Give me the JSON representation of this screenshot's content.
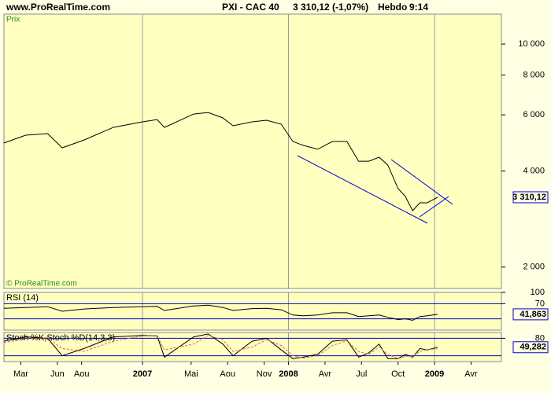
{
  "header": {
    "site": "www.ProRealTime.com",
    "instrument": "PXI - CAC 40",
    "quote": "3 310,12 (-1,07%)",
    "period": "Hebdo",
    "time": "9:14"
  },
  "chart_data": [
    {
      "type": "line",
      "title": "Prix",
      "source": "© ProRealTime.com",
      "log": true,
      "x": [
        2006.05,
        2006.2,
        2006.35,
        2006.45,
        2006.6,
        2006.8,
        2007.0,
        2007.1,
        2007.15,
        2007.35,
        2007.45,
        2007.55,
        2007.62,
        2007.75,
        2007.85,
        2007.95,
        2008.03,
        2008.1,
        2008.2,
        2008.3,
        2008.4,
        2008.48,
        2008.55,
        2008.62,
        2008.68,
        2008.75,
        2008.8,
        2008.85,
        2008.9,
        2008.95,
        2009.02
      ],
      "series": [
        {
          "color": "#000000",
          "values": [
            4895,
            5180,
            5240,
            4730,
            5005,
            5480,
            5705,
            5800,
            5480,
            6035,
            6105,
            5870,
            5545,
            5705,
            5770,
            5610,
            4950,
            4815,
            4680,
            4950,
            4950,
            4295,
            4295,
            4420,
            4175,
            3525,
            3330,
            3005,
            3180,
            3180,
            3310.12
          ]
        }
      ],
      "last_label": "3 310,12",
      "xlim": [
        2006.051,
        2009.458
      ],
      "xticks": [
        {
          "value": 2006.167,
          "label": "Mar"
        },
        {
          "value": 2006.417,
          "label": "Jun"
        },
        {
          "value": 2006.583,
          "label": "Aou"
        },
        2007,
        {
          "value": 2007.333,
          "label": "Mai"
        },
        {
          "value": 2007.583,
          "label": "Aou"
        },
        {
          "value": 2007.833,
          "label": "Nov"
        },
        2008,
        {
          "value": 2008.25,
          "label": "Avr"
        },
        {
          "value": 2008.5,
          "label": "Jul"
        },
        {
          "value": 2008.75,
          "label": "Oct"
        },
        2009,
        {
          "value": 2009.25,
          "label": "Avr"
        }
      ],
      "ylim": [
        1714,
        12410
      ],
      "yticks": [
        {
          "value": 2000,
          "label": "2 000"
        },
        {
          "value": 4000,
          "label": "4 000"
        },
        {
          "value": 6000,
          "label": "6 000"
        },
        {
          "value": 8000,
          "label": "8 000"
        },
        {
          "value": 10000,
          "label": "10 000"
        }
      ]
    },
    {
      "type": "line",
      "title": "RSI (14)",
      "x": [
        2006.05,
        2006.2,
        2006.35,
        2006.45,
        2006.6,
        2006.8,
        2007.0,
        2007.1,
        2007.15,
        2007.35,
        2007.45,
        2007.55,
        2007.62,
        2007.75,
        2007.85,
        2007.95,
        2008.03,
        2008.1,
        2008.2,
        2008.3,
        2008.4,
        2008.48,
        2008.55,
        2008.62,
        2008.68,
        2008.75,
        2008.8,
        2008.85,
        2008.9,
        2008.95,
        2009.02
      ],
      "series": [
        {
          "color": "#000000",
          "values": [
            58,
            60,
            62,
            50,
            56,
            60,
            62,
            63,
            52,
            64,
            66,
            60,
            52,
            57,
            58,
            54,
            40,
            38,
            40,
            46,
            46,
            36,
            38,
            40,
            34,
            28,
            30,
            26,
            36,
            38,
            41.863
          ]
        }
      ],
      "last_label": "41,863",
      "ylim": [
        0,
        100
      ],
      "yticks": [
        70,
        100
      ],
      "levels": [
        30,
        70
      ],
      "level_color": "#0000cc"
    },
    {
      "type": "line",
      "title": "Stoch %K,Stoch %D(14,3,3)",
      "x": [
        2006.05,
        2006.2,
        2006.35,
        2006.45,
        2006.6,
        2006.8,
        2007.0,
        2007.1,
        2007.15,
        2007.35,
        2007.45,
        2007.55,
        2007.62,
        2007.75,
        2007.85,
        2007.95,
        2008.03,
        2008.1,
        2008.2,
        2008.3,
        2008.4,
        2008.48,
        2008.55,
        2008.62,
        2008.68,
        2008.75,
        2008.8,
        2008.85,
        2008.9,
        2008.95,
        2009.02
      ],
      "series": [
        {
          "color": "#000000",
          "values": [
            70,
            85,
            80,
            20,
            45,
            85,
            90,
            88,
            15,
            85,
            95,
            60,
            20,
            70,
            80,
            40,
            10,
            15,
            25,
            70,
            75,
            15,
            30,
            60,
            10,
            10,
            25,
            15,
            45,
            40,
            49.282
          ]
        },
        {
          "color": "#e06060",
          "dash": true,
          "values": [
            65,
            78,
            82,
            45,
            35,
            70,
            88,
            89,
            40,
            60,
            90,
            75,
            35,
            50,
            75,
            55,
            20,
            12,
            20,
            55,
            72,
            35,
            25,
            50,
            25,
            10,
            18,
            18,
            35,
            42,
            44
          ]
        }
      ],
      "last_label": "49,282",
      "ylim": [
        0,
        100
      ],
      "yticks": [
        80
      ],
      "levels": [
        20,
        80
      ],
      "level_color": "#0000cc"
    }
  ]
}
